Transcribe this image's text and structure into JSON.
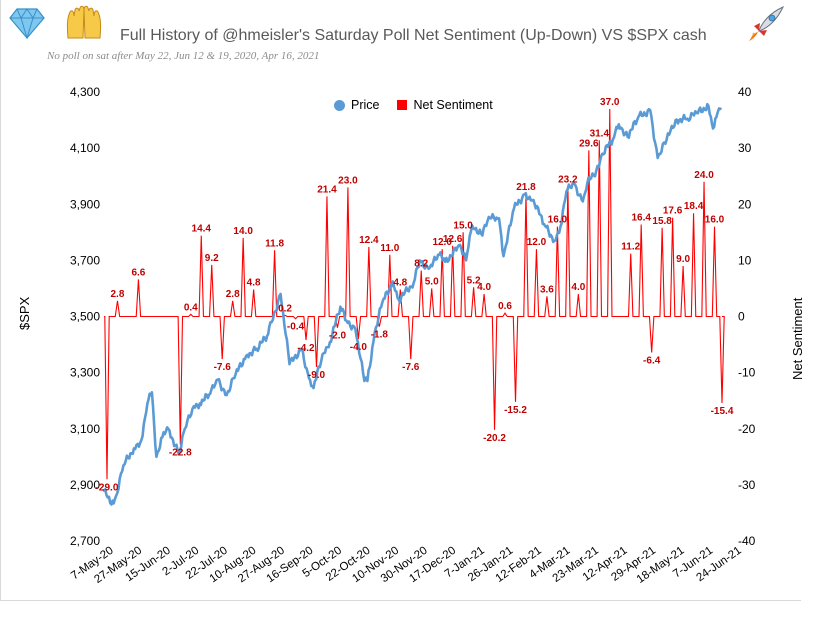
{
  "title": "Full History of @hmeisler's Saturday Poll Net Sentiment (Up-Down) VS $SPX  cash",
  "subtitle": "No poll on sat after May 22, Jun 12 & 19, 2020, Apr 16, 2021",
  "icons": [
    "diamond-icon",
    "raised-hands-icon",
    "rocket-icon"
  ],
  "colors": {
    "price": "#5b9bd5",
    "sentiment": "#ff0000",
    "sentiment_label": "#c00000"
  },
  "chart_data": {
    "type": "line",
    "left_axis": {
      "label": "$SPX",
      "ylim": [
        2700,
        4300
      ],
      "ticks": [
        "2,700",
        "2,900",
        "3,100",
        "3,300",
        "3,500",
        "3,700",
        "3,900",
        "4,100",
        "4,300"
      ]
    },
    "right_axis": {
      "label": "Net Sentiment",
      "ylim": [
        -40,
        40
      ],
      "ticks": [
        "-40",
        "-30",
        "-20",
        "-10",
        "0",
        "10",
        "20",
        "30",
        "40"
      ]
    },
    "x_ticks": [
      "7-May-20",
      "27-May-20",
      "15-Jun-20",
      "2-Jul-20",
      "22-Jul-20",
      "10-Aug-20",
      "27-Aug-20",
      "16-Sep-20",
      "5-Oct-20",
      "22-Oct-20",
      "10-Nov-20",
      "30-Nov-20",
      "17-Dec-20",
      "7-Jan-21",
      "26-Jan-21",
      "12-Feb-21",
      "4-Mar-21",
      "23-Mar-21",
      "12-Apr-21",
      "29-Apr-21",
      "18-May-21",
      "7-Jun-21",
      "24-Jun-21"
    ],
    "legend": [
      "Price",
      "Net Sentiment"
    ],
    "series": [
      {
        "name": "Price",
        "axis": "left",
        "points": [
          [
            "2020-05-07",
            2880
          ],
          [
            "2020-05-12",
            2830
          ],
          [
            "2020-05-15",
            2860
          ],
          [
            "2020-05-20",
            2970
          ],
          [
            "2020-05-27",
            3030
          ],
          [
            "2020-06-01",
            3060
          ],
          [
            "2020-06-05",
            3190
          ],
          [
            "2020-06-08",
            3230
          ],
          [
            "2020-06-11",
            3000
          ],
          [
            "2020-06-15",
            3070
          ],
          [
            "2020-06-19",
            3100
          ],
          [
            "2020-06-26",
            3010
          ],
          [
            "2020-06-30",
            3100
          ],
          [
            "2020-07-06",
            3180
          ],
          [
            "2020-07-10",
            3190
          ],
          [
            "2020-07-17",
            3225
          ],
          [
            "2020-07-22",
            3275
          ],
          [
            "2020-07-28",
            3220
          ],
          [
            "2020-08-03",
            3295
          ],
          [
            "2020-08-10",
            3360
          ],
          [
            "2020-08-17",
            3385
          ],
          [
            "2020-08-24",
            3430
          ],
          [
            "2020-08-27",
            3480
          ],
          [
            "2020-09-02",
            3580
          ],
          [
            "2020-09-08",
            3330
          ],
          [
            "2020-09-16",
            3385
          ],
          [
            "2020-09-21",
            3280
          ],
          [
            "2020-09-24",
            3245
          ],
          [
            "2020-09-30",
            3365
          ],
          [
            "2020-10-05",
            3410
          ],
          [
            "2020-10-12",
            3535
          ],
          [
            "2020-10-16",
            3485
          ],
          [
            "2020-10-22",
            3455
          ],
          [
            "2020-10-28",
            3270
          ],
          [
            "2020-10-30",
            3270
          ],
          [
            "2020-11-04",
            3445
          ],
          [
            "2020-11-09",
            3550
          ],
          [
            "2020-11-16",
            3625
          ],
          [
            "2020-11-20",
            3560
          ],
          [
            "2020-11-30",
            3620
          ],
          [
            "2020-12-04",
            3700
          ],
          [
            "2020-12-10",
            3670
          ],
          [
            "2020-12-17",
            3720
          ],
          [
            "2020-12-21",
            3695
          ],
          [
            "2020-12-31",
            3755
          ],
          [
            "2021-01-04",
            3700
          ],
          [
            "2021-01-08",
            3825
          ],
          [
            "2021-01-14",
            3795
          ],
          [
            "2021-01-20",
            3850
          ],
          [
            "2021-01-26",
            3850
          ],
          [
            "2021-01-29",
            3715
          ],
          [
            "2021-02-05",
            3885
          ],
          [
            "2021-02-12",
            3935
          ],
          [
            "2021-02-18",
            3915
          ],
          [
            "2021-02-25",
            3830
          ],
          [
            "2021-03-04",
            3770
          ],
          [
            "2021-03-08",
            3820
          ],
          [
            "2021-03-12",
            3945
          ],
          [
            "2021-03-17",
            3975
          ],
          [
            "2021-03-23",
            3910
          ],
          [
            "2021-03-26",
            3975
          ],
          [
            "2021-04-01",
            4020
          ],
          [
            "2021-04-05",
            4080
          ],
          [
            "2021-04-12",
            4130
          ],
          [
            "2021-04-16",
            4185
          ],
          [
            "2021-04-22",
            4140
          ],
          [
            "2021-04-29",
            4210
          ],
          [
            "2021-05-07",
            4235
          ],
          [
            "2021-05-12",
            4065
          ],
          [
            "2021-05-18",
            4130
          ],
          [
            "2021-05-24",
            4200
          ],
          [
            "2021-06-01",
            4205
          ],
          [
            "2021-06-07",
            4225
          ],
          [
            "2021-06-15",
            4250
          ],
          [
            "2021-06-18",
            4170
          ],
          [
            "2021-06-21",
            4225
          ],
          [
            "2021-06-23",
            4240
          ]
        ]
      },
      {
        "name": "Net Sentiment",
        "axis": "right",
        "points": [
          [
            "2020-05-07",
            0
          ],
          [
            "2020-05-09",
            -29.0
          ],
          [
            "2020-05-16",
            2.8
          ],
          [
            "2020-05-30",
            6.6
          ],
          [
            "2020-06-06",
            0
          ],
          [
            "2020-06-27",
            -22.8
          ],
          [
            "2020-07-04",
            0.4
          ],
          [
            "2020-07-11",
            14.4
          ],
          [
            "2020-07-18",
            9.2
          ],
          [
            "2020-07-25",
            -7.6
          ],
          [
            "2020-08-01",
            2.8
          ],
          [
            "2020-08-08",
            14.0
          ],
          [
            "2020-08-15",
            4.8
          ],
          [
            "2020-08-22",
            0
          ],
          [
            "2020-08-29",
            11.8
          ],
          [
            "2020-09-05",
            0.2
          ],
          [
            "2020-09-12",
            -0.4
          ],
          [
            "2020-09-19",
            -4.2
          ],
          [
            "2020-09-26",
            -9.0
          ],
          [
            "2020-10-03",
            21.4
          ],
          [
            "2020-10-10",
            -2.0
          ],
          [
            "2020-10-17",
            23.0
          ],
          [
            "2020-10-24",
            -4.0
          ],
          [
            "2020-10-31",
            12.4
          ],
          [
            "2020-11-07",
            -1.8
          ],
          [
            "2020-11-14",
            11.0
          ],
          [
            "2020-11-21",
            4.8
          ],
          [
            "2020-11-28",
            -7.6
          ],
          [
            "2020-12-05",
            8.2
          ],
          [
            "2020-12-12",
            5.0
          ],
          [
            "2020-12-19",
            12.0
          ],
          [
            "2020-12-26",
            12.6
          ],
          [
            "2021-01-02",
            15.0
          ],
          [
            "2021-01-09",
            5.2
          ],
          [
            "2021-01-16",
            4.0
          ],
          [
            "2021-01-23",
            -20.2
          ],
          [
            "2021-01-30",
            0.6
          ],
          [
            "2021-02-06",
            -15.2
          ],
          [
            "2021-02-13",
            21.8
          ],
          [
            "2021-02-20",
            12.0
          ],
          [
            "2021-02-27",
            3.6
          ],
          [
            "2021-03-06",
            16.0
          ],
          [
            "2021-03-13",
            23.2
          ],
          [
            "2021-03-20",
            4.0
          ],
          [
            "2021-03-27",
            29.6
          ],
          [
            "2021-04-03",
            31.4
          ],
          [
            "2021-04-10",
            37.0
          ],
          [
            "2021-04-24",
            11.2
          ],
          [
            "2021-05-01",
            16.4
          ],
          [
            "2021-05-08",
            -6.4
          ],
          [
            "2021-05-15",
            15.8
          ],
          [
            "2021-05-22",
            17.6
          ],
          [
            "2021-05-29",
            9.0
          ],
          [
            "2021-06-05",
            18.4
          ],
          [
            "2021-06-12",
            24.0
          ],
          [
            "2021-06-19",
            16.0
          ],
          [
            "2021-06-24",
            -15.4
          ]
        ]
      }
    ]
  }
}
